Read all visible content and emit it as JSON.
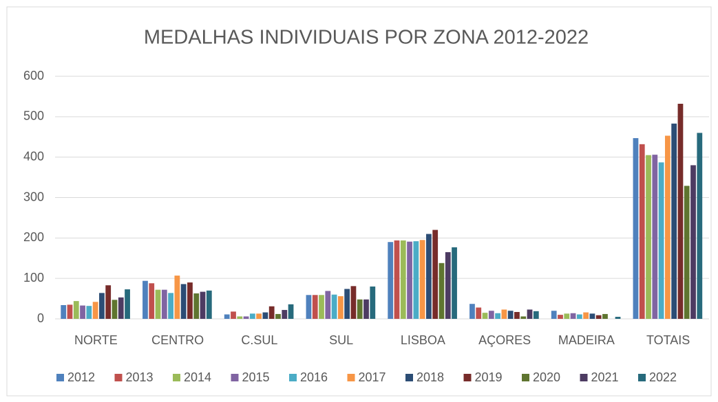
{
  "chart_data": {
    "type": "bar",
    "title": "MEDALHAS INDIVIDUAIS POR ZONA 2012-2022",
    "categories": [
      "NORTE",
      "CENTRO",
      "C.SUL",
      "SUL",
      "LISBOA",
      "AÇORES",
      "MADEIRA",
      "TOTAIS"
    ],
    "series": [
      {
        "name": "2012",
        "color": "#4f81bd",
        "values": [
          34,
          94,
          11,
          59,
          190,
          37,
          20,
          447
        ]
      },
      {
        "name": "2013",
        "color": "#c0504d",
        "values": [
          35,
          88,
          18,
          59,
          194,
          28,
          10,
          432
        ]
      },
      {
        "name": "2014",
        "color": "#9bbb59",
        "values": [
          44,
          72,
          6,
          59,
          194,
          15,
          13,
          405
        ]
      },
      {
        "name": "2015",
        "color": "#8064a2",
        "values": [
          33,
          72,
          6,
          69,
          191,
          20,
          14,
          406
        ]
      },
      {
        "name": "2016",
        "color": "#4bacc6",
        "values": [
          32,
          64,
          13,
          60,
          192,
          14,
          11,
          387
        ]
      },
      {
        "name": "2017",
        "color": "#f79646",
        "values": [
          42,
          107,
          13,
          56,
          195,
          23,
          16,
          453
        ]
      },
      {
        "name": "2018",
        "color": "#2c4d75",
        "values": [
          64,
          86,
          16,
          74,
          210,
          20,
          13,
          483
        ]
      },
      {
        "name": "2019",
        "color": "#772c2a",
        "values": [
          83,
          90,
          31,
          81,
          220,
          17,
          9,
          532
        ]
      },
      {
        "name": "2020",
        "color": "#5f7530",
        "values": [
          47,
          63,
          12,
          48,
          138,
          6,
          12,
          329
        ]
      },
      {
        "name": "2021",
        "color": "#4d3b62",
        "values": [
          53,
          67,
          22,
          48,
          165,
          23,
          null,
          380
        ]
      },
      {
        "name": "2022",
        "color": "#276a7c",
        "values": [
          73,
          70,
          36,
          80,
          177,
          19,
          5,
          460
        ]
      }
    ],
    "ylim": [
      0,
      600
    ],
    "yticks": [
      0,
      100,
      200,
      300,
      400,
      500,
      600
    ],
    "grid": true,
    "legend": "bottom"
  }
}
